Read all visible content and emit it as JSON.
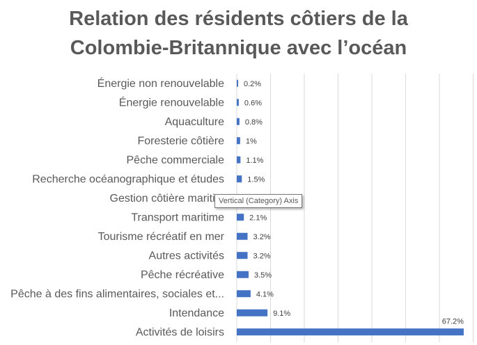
{
  "chart_data": {
    "type": "bar",
    "orientation": "horizontal",
    "title": "Relation des résidents côtiers de la Colombie-Britannique avec l’océan",
    "title_lines": [
      "Relation des résidents côtiers de la",
      "Colombie-Britannique avec l’océan"
    ],
    "categories": [
      "Énergie non renouvelable",
      "Énergie renouvelable",
      "Aquaculture",
      "Foresterie côtière",
      "Pêche commerciale",
      "Recherche océanographique et études",
      "Gestion côtière maritim",
      "Transport maritime",
      "Tourisme récréatif en mer",
      "Autres activités",
      "Pêche récréative",
      "Pêche à des fins alimentaires, sociales et...",
      "Intendance",
      "Activités de loisirs"
    ],
    "values": [
      0.2,
      0.6,
      0.8,
      1,
      1.1,
      1.5,
      null,
      2.1,
      3.2,
      3.2,
      3.5,
      4.1,
      9.1,
      67.2
    ],
    "data_labels": [
      "0.2%",
      "0.6%",
      "0.8%",
      "1%",
      "1.1%",
      "1.5%",
      "",
      "2.1%",
      "3.2%",
      "3.2%",
      "3.5%",
      "4.1%",
      "9.1%",
      "67.2%"
    ],
    "xlim": [
      0,
      70
    ],
    "grid": true,
    "color": "#4472C4"
  },
  "tooltip": "Vertical (Category) Axis"
}
